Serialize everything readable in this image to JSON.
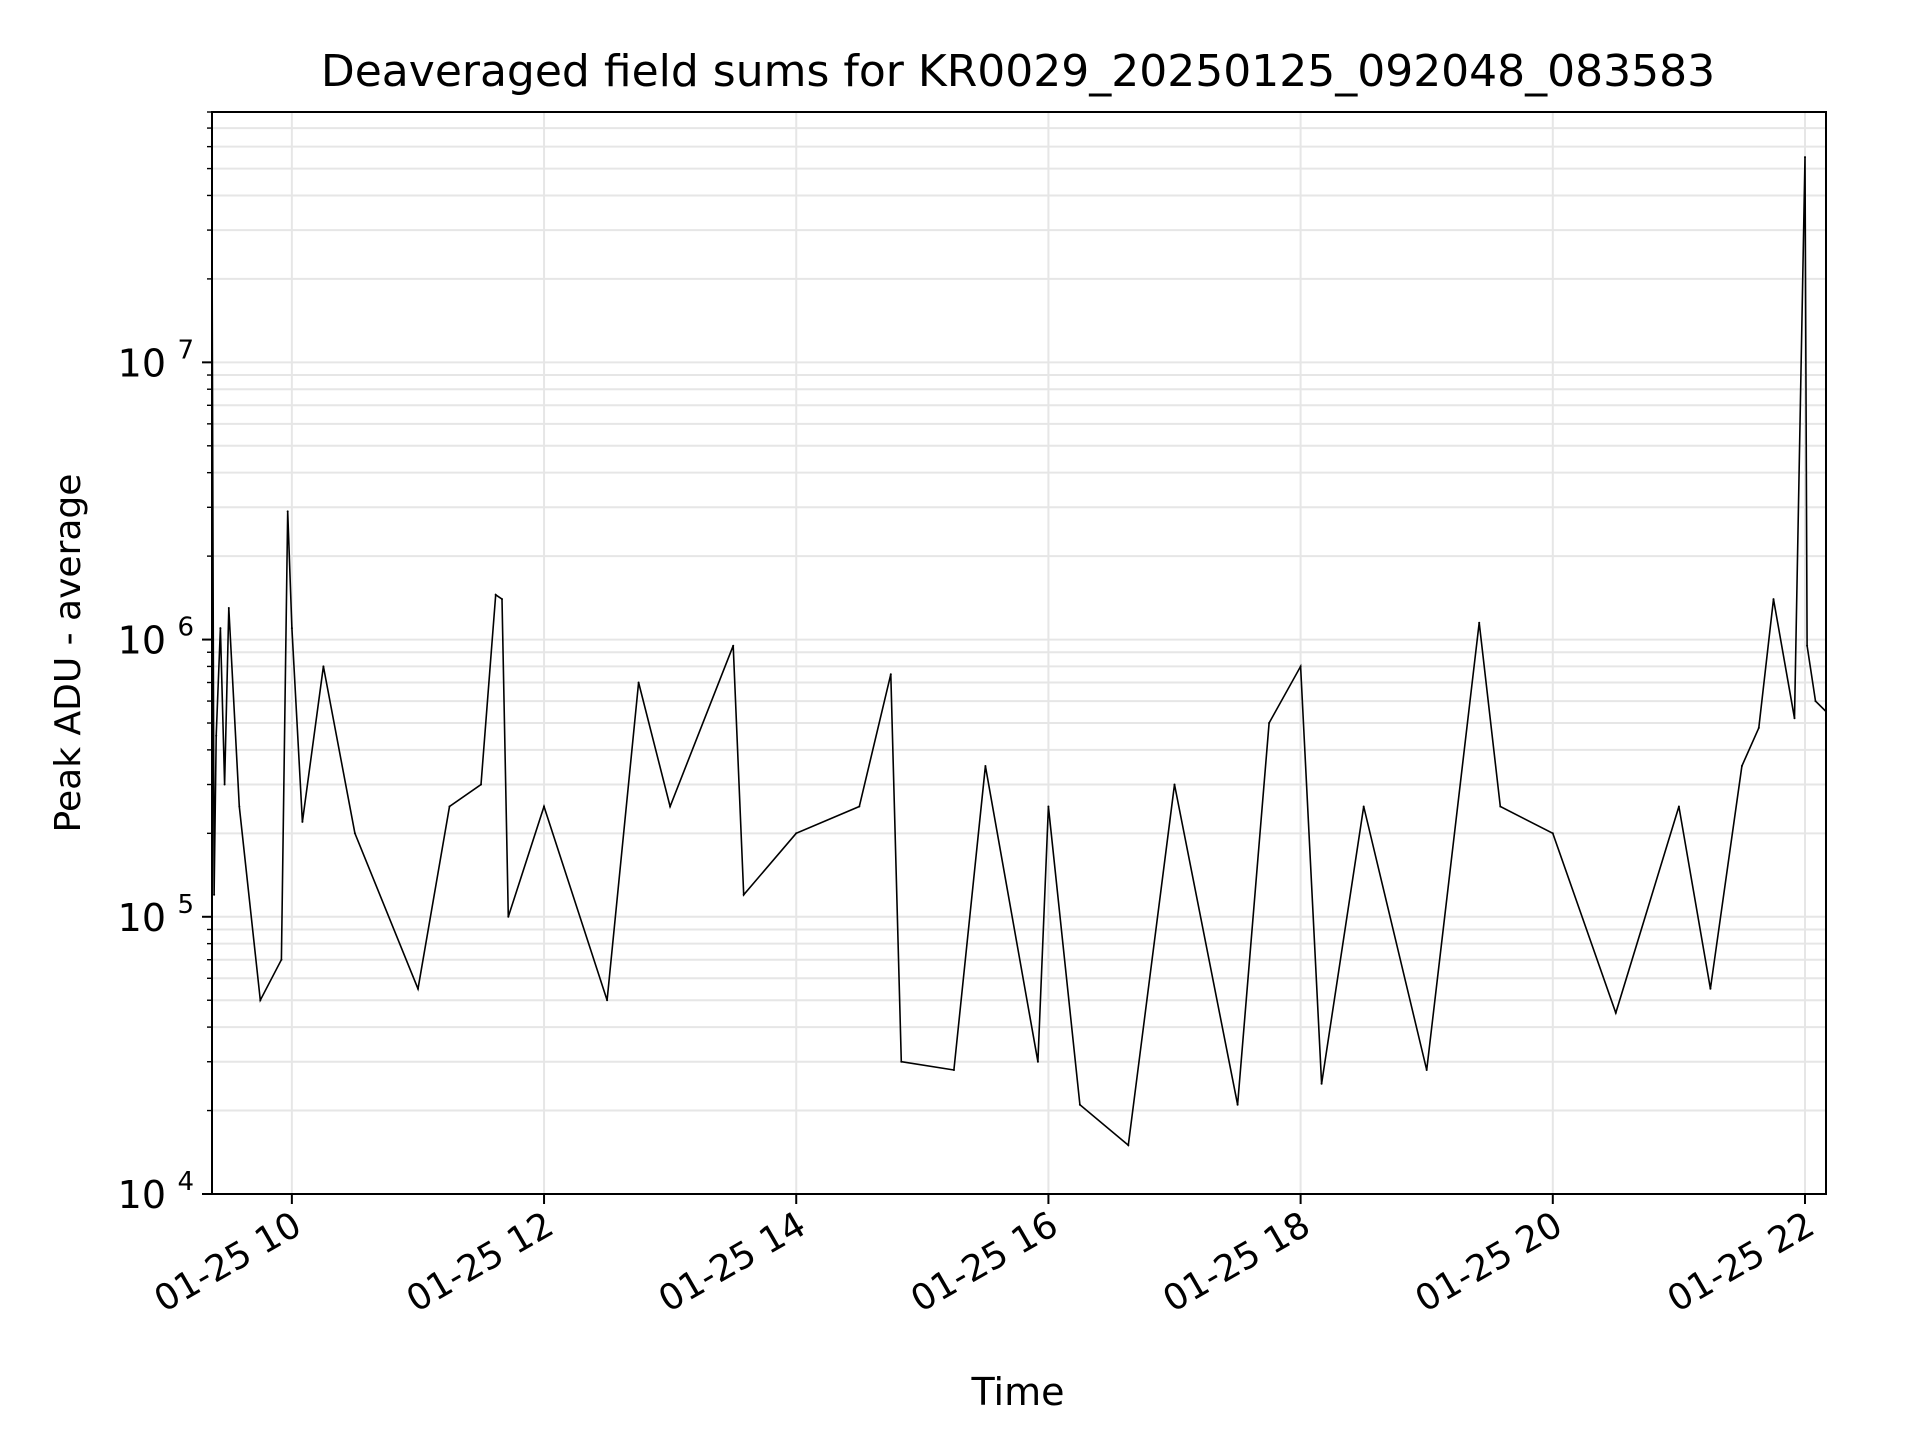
{
  "chart_data": {
    "type": "line",
    "title": "Deaveraged field sums for KR0029_20250125_092048_083583",
    "xlabel": "Time",
    "ylabel": "Peak ADU - average",
    "x_axis": {
      "kind": "time",
      "range": [
        "2025-01-25 09:22",
        "2025-01-25 22:10"
      ],
      "ticks": [
        {
          "t": "2025-01-25 10:00",
          "label": "01-25 10"
        },
        {
          "t": "2025-01-25 12:00",
          "label": "01-25 12"
        },
        {
          "t": "2025-01-25 14:00",
          "label": "01-25 14"
        },
        {
          "t": "2025-01-25 16:00",
          "label": "01-25 16"
        },
        {
          "t": "2025-01-25 18:00",
          "label": "01-25 18"
        },
        {
          "t": "2025-01-25 20:00",
          "label": "01-25 20"
        },
        {
          "t": "2025-01-25 22:00",
          "label": "01-25 22"
        }
      ]
    },
    "y_axis": {
      "scale": "log",
      "range": [
        10000,
        80000000
      ],
      "ticks": [
        {
          "value": 10000,
          "base": "10",
          "exp": "4"
        },
        {
          "value": 100000,
          "base": "10",
          "exp": "5"
        },
        {
          "value": 1000000,
          "base": "10",
          "exp": "6"
        },
        {
          "value": 10000000,
          "base": "10",
          "exp": "7"
        }
      ]
    },
    "grid": true,
    "line_color": "#000000",
    "series": [
      {
        "x": [
          "2025-01-25 09:22",
          "2025-01-25 09:23",
          "2025-01-25 09:24",
          "2025-01-25 09:26",
          "2025-01-25 09:28",
          "2025-01-25 09:30",
          "2025-01-25 09:35",
          "2025-01-25 09:45",
          "2025-01-25 09:55",
          "2025-01-25 09:58",
          "2025-01-25 10:00",
          "2025-01-25 10:05",
          "2025-01-25 10:15",
          "2025-01-25 10:30",
          "2025-01-25 11:00",
          "2025-01-25 11:15",
          "2025-01-25 11:30",
          "2025-01-25 11:37",
          "2025-01-25 11:40",
          "2025-01-25 11:43",
          "2025-01-25 12:00",
          "2025-01-25 12:30",
          "2025-01-25 12:45",
          "2025-01-25 13:00",
          "2025-01-25 13:30",
          "2025-01-25 13:35",
          "2025-01-25 14:00",
          "2025-01-25 14:30",
          "2025-01-25 14:45",
          "2025-01-25 14:50",
          "2025-01-25 15:15",
          "2025-01-25 15:30",
          "2025-01-25 15:55",
          "2025-01-25 16:00",
          "2025-01-25 16:15",
          "2025-01-25 16:38",
          "2025-01-25 17:00",
          "2025-01-25 17:30",
          "2025-01-25 17:45",
          "2025-01-25 18:00",
          "2025-01-25 18:10",
          "2025-01-25 18:30",
          "2025-01-25 19:00",
          "2025-01-25 19:25",
          "2025-01-25 19:35",
          "2025-01-25 20:00",
          "2025-01-25 20:30",
          "2025-01-25 21:00",
          "2025-01-25 21:15",
          "2025-01-25 21:30",
          "2025-01-25 21:38",
          "2025-01-25 21:45",
          "2025-01-25 21:55",
          "2025-01-25 22:00",
          "2025-01-25 22:01",
          "2025-01-25 22:05",
          "2025-01-25 22:10"
        ],
        "y": [
          30000000,
          120000,
          450000,
          1100000,
          300000,
          1300000,
          250000,
          50000,
          70000,
          2900000,
          1100000,
          220000,
          800000,
          200000,
          55000,
          250000,
          300000,
          1450000,
          1400000,
          100000,
          250000,
          50000,
          700000,
          250000,
          950000,
          120000,
          200000,
          250000,
          750000,
          30000,
          28000,
          350000,
          30000,
          250000,
          21000,
          15000,
          300000,
          21000,
          500000,
          800000,
          25000,
          250000,
          28000,
          1150000,
          250000,
          200000,
          45000,
          250000,
          55000,
          350000,
          480000,
          1400000,
          520000,
          55000000,
          950000,
          600000,
          550000
        ]
      }
    ]
  }
}
